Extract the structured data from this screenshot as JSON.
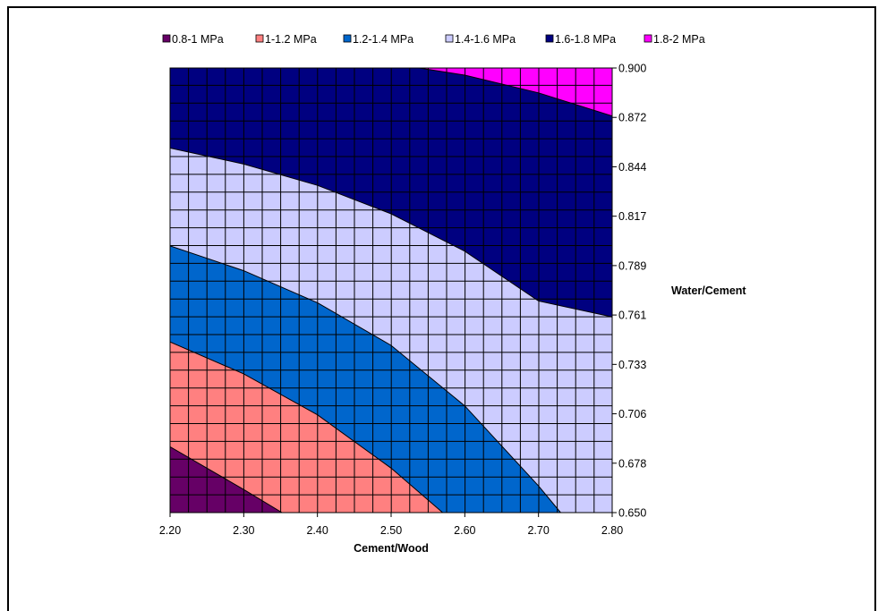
{
  "chart_data": {
    "type": "contour",
    "x_label": "Cement/Wood",
    "y_label": "Water/Cement",
    "x_ticks": [
      "2.20",
      "2.30",
      "2.40",
      "2.50",
      "2.60",
      "2.70",
      "2.80"
    ],
    "y_ticks": [
      "0.650",
      "0.678",
      "0.706",
      "0.733",
      "0.761",
      "0.789",
      "0.817",
      "0.844",
      "0.872",
      "0.900"
    ],
    "xlim": [
      2.2,
      2.8
    ],
    "ylim": [
      0.65,
      0.9
    ],
    "grid": true,
    "legend_position": "top",
    "levels": [
      {
        "label": "0.8-1 MPa",
        "color": "#660066"
      },
      {
        "label": "1-1.2 MPa",
        "color": "#ff8080"
      },
      {
        "label": "1.2-1.4  MPa",
        "color": "#0066cc"
      },
      {
        "label": "1.4-1.6  MPa",
        "color": "#ccccff"
      },
      {
        "label": "1.6-1.8 MPa",
        "color": "#000080"
      },
      {
        "label": "1.8-2 MPa",
        "color": "#ff00ff"
      }
    ],
    "boundaries": [
      {
        "between": "0.8-1 MPa / 1-1.2 MPa",
        "points": [
          [
            2.2,
            0.687
          ],
          [
            2.25,
            0.675
          ],
          [
            2.3,
            0.663
          ],
          [
            2.352,
            0.65
          ]
        ]
      },
      {
        "between": "1-1.2 MPa / 1.2-1.4 MPa",
        "points": [
          [
            2.2,
            0.746
          ],
          [
            2.3,
            0.728
          ],
          [
            2.4,
            0.705
          ],
          [
            2.5,
            0.675
          ],
          [
            2.57,
            0.65
          ]
        ]
      },
      {
        "between": "1.2-1.4 MPa / 1.4-1.6 MPa",
        "points": [
          [
            2.2,
            0.8
          ],
          [
            2.3,
            0.786
          ],
          [
            2.4,
            0.768
          ],
          [
            2.5,
            0.744
          ],
          [
            2.6,
            0.71
          ],
          [
            2.7,
            0.665
          ],
          [
            2.73,
            0.65
          ]
        ]
      },
      {
        "between": "1.4-1.6 MPa / 1.6-1.8 MPa",
        "points": [
          [
            2.2,
            0.855
          ],
          [
            2.3,
            0.846
          ],
          [
            2.4,
            0.834
          ],
          [
            2.5,
            0.818
          ],
          [
            2.6,
            0.797
          ],
          [
            2.7,
            0.769
          ],
          [
            2.8,
            0.76
          ]
        ]
      },
      {
        "between": "1.6-1.8 MPa / 1.8-2 MPa",
        "points": [
          [
            2.538,
            0.9
          ],
          [
            2.6,
            0.896
          ],
          [
            2.7,
            0.886
          ],
          [
            2.8,
            0.873
          ]
        ]
      }
    ]
  }
}
